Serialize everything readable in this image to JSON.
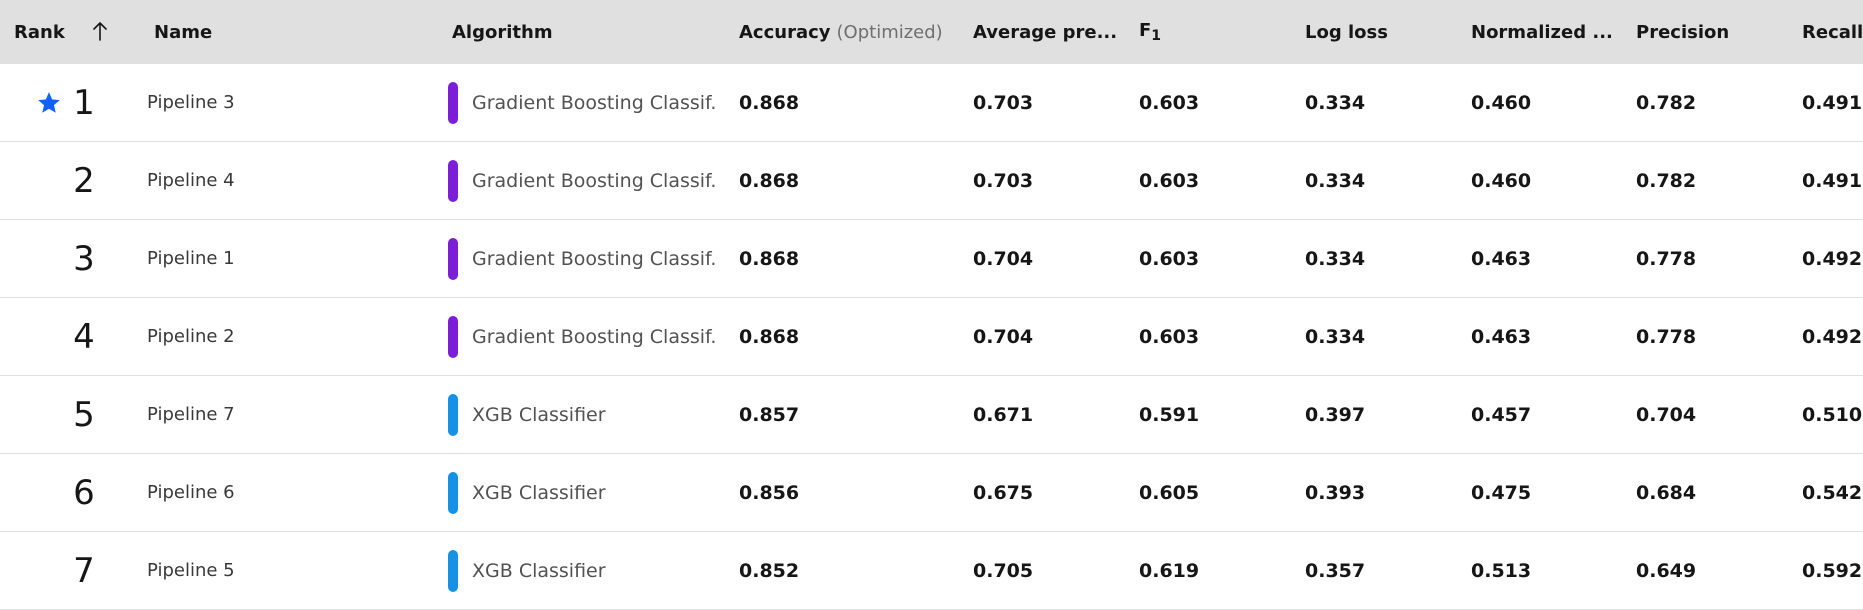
{
  "header": {
    "rank": "Rank",
    "name": "Name",
    "algorithm": "Algorithm",
    "accuracy": "Accuracy",
    "accuracy_sub": "(Optimized)",
    "average_precision": "Average pre...",
    "f1_main": "F",
    "f1_sub": "1",
    "log_loss": "Log loss",
    "normalized": "Normalized ...",
    "precision": "Precision",
    "recall": "Recall",
    "sort_icon": "arrow-up-icon"
  },
  "colors": {
    "gradient_boosting": "#7c1ed8",
    "xgb": "#1592e6",
    "star": "#0f62fe"
  },
  "rows": [
    {
      "rank": "1",
      "starred": true,
      "name": "Pipeline 3",
      "algorithm": "Gradient Boosting Classif...",
      "alg_type": "gradient_boosting",
      "accuracy": "0.868",
      "avg_precision": "0.703",
      "f1": "0.603",
      "log_loss": "0.334",
      "normalized": "0.460",
      "precision": "0.782",
      "recall": "0.491"
    },
    {
      "rank": "2",
      "starred": false,
      "name": "Pipeline 4",
      "algorithm": "Gradient Boosting Classif...",
      "alg_type": "gradient_boosting",
      "accuracy": "0.868",
      "avg_precision": "0.703",
      "f1": "0.603",
      "log_loss": "0.334",
      "normalized": "0.460",
      "precision": "0.782",
      "recall": "0.491"
    },
    {
      "rank": "3",
      "starred": false,
      "name": "Pipeline 1",
      "algorithm": "Gradient Boosting Classif...",
      "alg_type": "gradient_boosting",
      "accuracy": "0.868",
      "avg_precision": "0.704",
      "f1": "0.603",
      "log_loss": "0.334",
      "normalized": "0.463",
      "precision": "0.778",
      "recall": "0.492"
    },
    {
      "rank": "4",
      "starred": false,
      "name": "Pipeline 2",
      "algorithm": "Gradient Boosting Classif...",
      "alg_type": "gradient_boosting",
      "accuracy": "0.868",
      "avg_precision": "0.704",
      "f1": "0.603",
      "log_loss": "0.334",
      "normalized": "0.463",
      "precision": "0.778",
      "recall": "0.492"
    },
    {
      "rank": "5",
      "starred": false,
      "name": "Pipeline 7",
      "algorithm": "XGB Classifier",
      "alg_type": "xgb",
      "accuracy": "0.857",
      "avg_precision": "0.671",
      "f1": "0.591",
      "log_loss": "0.397",
      "normalized": "0.457",
      "precision": "0.704",
      "recall": "0.510"
    },
    {
      "rank": "6",
      "starred": false,
      "name": "Pipeline 6",
      "algorithm": "XGB Classifier",
      "alg_type": "xgb",
      "accuracy": "0.856",
      "avg_precision": "0.675",
      "f1": "0.605",
      "log_loss": "0.393",
      "normalized": "0.475",
      "precision": "0.684",
      "recall": "0.542"
    },
    {
      "rank": "7",
      "starred": false,
      "name": "Pipeline 5",
      "algorithm": "XGB Classifier",
      "alg_type": "xgb",
      "accuracy": "0.852",
      "avg_precision": "0.705",
      "f1": "0.619",
      "log_loss": "0.357",
      "normalized": "0.513",
      "precision": "0.649",
      "recall": "0.592"
    }
  ]
}
